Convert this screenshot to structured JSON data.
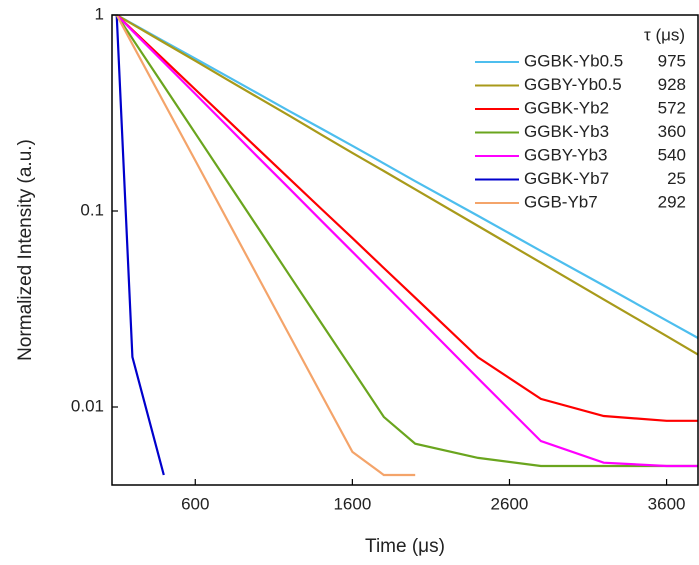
{
  "chart_data": {
    "type": "line",
    "x_label": "Time (μs)",
    "y_label": "Normalized Intensity (a.u.)",
    "legend_header": "τ (μs)",
    "log_y": true,
    "xlim": [
      70,
      3800
    ],
    "ylim": [
      0.004,
      1
    ],
    "xticks": [
      600,
      1600,
      2600,
      3600
    ],
    "yticks": [
      1,
      0.1,
      0.01
    ],
    "x": [
      100,
      200,
      400,
      600,
      800,
      1000,
      1200,
      1400,
      1600,
      1800,
      2000,
      2400,
      2800,
      3200,
      3600,
      3800
    ],
    "series": [
      {
        "name": "GGBK-Yb0.5",
        "tau": 975,
        "color": "#4dbeee",
        "values": [
          1,
          0.903,
          0.735,
          0.599,
          0.488,
          0.397,
          0.323,
          0.264,
          0.215,
          0.175,
          0.142,
          0.0944,
          0.0626,
          0.0417,
          0.0276,
          0.0225
        ]
      },
      {
        "name": "GGBY-Yb0.5",
        "tau": 928,
        "color": "#a89a1a",
        "values": [
          1,
          0.898,
          0.724,
          0.584,
          0.47,
          0.379,
          0.306,
          0.246,
          0.198,
          0.16,
          0.129,
          0.0838,
          0.0545,
          0.0354,
          0.023,
          0.0185
        ]
      },
      {
        "name": "GGBK-Yb2",
        "tau": 572,
        "color": "#ff0000",
        "values": [
          1,
          0.839,
          0.592,
          0.417,
          0.294,
          0.207,
          0.146,
          0.103,
          0.0727,
          0.0512,
          0.0361,
          0.0179,
          0.011,
          0.009,
          0.0085,
          0.0085
        ]
      },
      {
        "name": "GGBK-Yb3",
        "tau": 360,
        "color": "#6aa51e",
        "values": [
          1,
          0.757,
          0.435,
          0.249,
          0.143,
          0.082,
          0.047,
          0.027,
          0.0155,
          0.0089,
          0.0065,
          0.0055,
          0.005,
          0.005,
          0.005,
          0.005
        ]
      },
      {
        "name": "GGBY-Yb3",
        "tau": 540,
        "color": "#ff00ff",
        "values": [
          1,
          0.831,
          0.574,
          0.396,
          0.273,
          0.188,
          0.13,
          0.0897,
          0.0619,
          0.0427,
          0.0295,
          0.014,
          0.0067,
          0.0052,
          0.005,
          0.005
        ]
      },
      {
        "name": "GGBK-Yb7",
        "tau": 25,
        "color": "#0000cc",
        "values": [
          1,
          0.018,
          0.0045,
          null,
          null,
          null,
          null,
          null,
          null,
          null,
          null,
          null,
          null,
          null,
          null,
          null
        ]
      },
      {
        "name": "GGB-Yb7",
        "tau": 292,
        "color": "#f4a46a",
        "values": [
          1,
          0.71,
          0.358,
          0.181,
          0.0912,
          0.046,
          0.0232,
          0.0117,
          0.0059,
          0.0045,
          0.0045,
          null,
          null,
          null,
          null,
          null
        ]
      }
    ]
  }
}
